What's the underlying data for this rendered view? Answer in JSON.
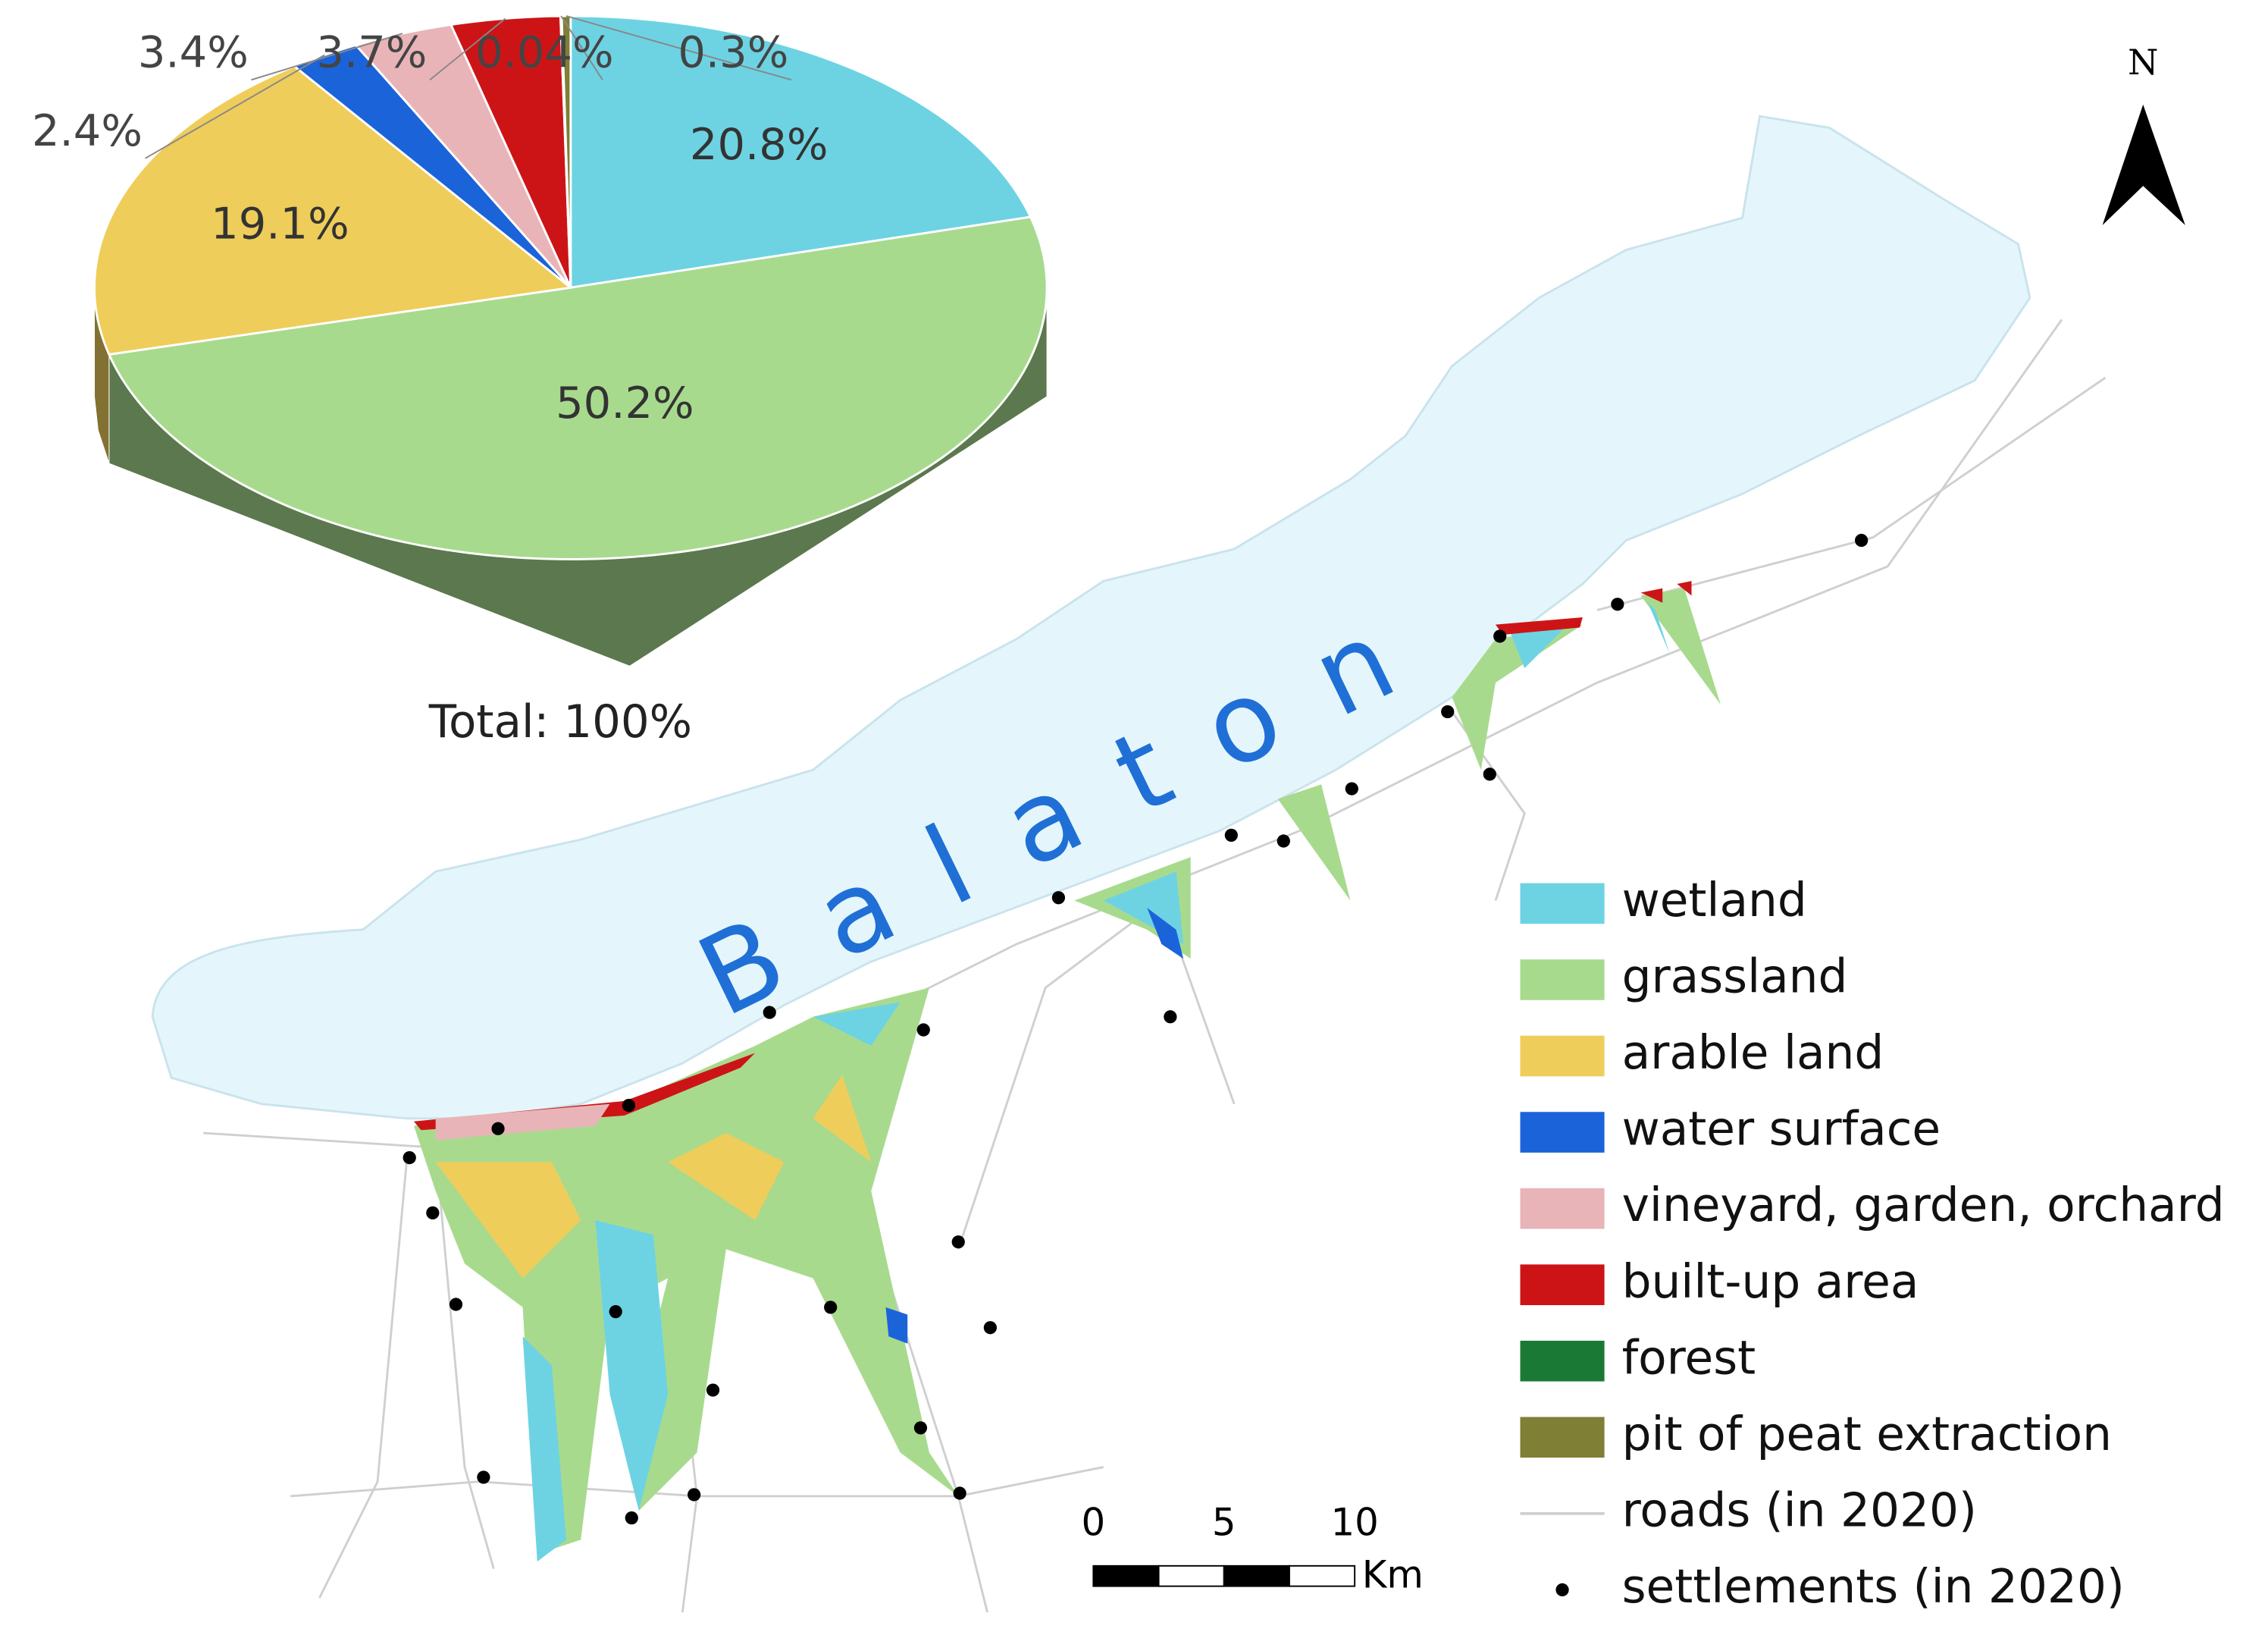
{
  "chart_data": {
    "type": "pie",
    "categories": [
      "wetland",
      "grassland",
      "arable land",
      "water surface",
      "vineyard, garden, orchard",
      "built-up area",
      "forest",
      "pit of peat extraction"
    ],
    "values": [
      20.8,
      50.2,
      19.1,
      2.4,
      3.4,
      3.7,
      0.04,
      0.3
    ],
    "value_labels": [
      "20.8%",
      "50.2%",
      "19.1%",
      "2.4%",
      "3.4%",
      "3.7%",
      "0.04%",
      "0.3%"
    ],
    "colors": [
      "#6dd3e3",
      "#a8da8e",
      "#efcd5a",
      "#1b63d9",
      "#e8b4b8",
      "#cc1417",
      "#1a7a35",
      "#7f7f35"
    ],
    "total_label": "Total: 100%"
  },
  "map": {
    "lake_name": "Balaton",
    "north": "N",
    "legend": [
      "roads (in 2020)",
      "settlements (in 2020)"
    ],
    "scale_ticks": [
      0,
      5,
      10
    ],
    "scale_unit": "Km"
  }
}
